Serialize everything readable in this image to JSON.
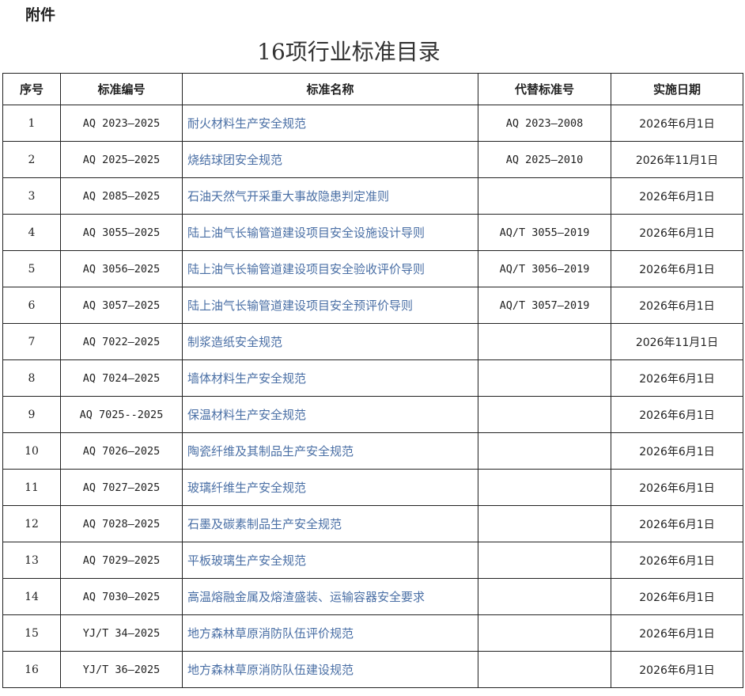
{
  "attachment_label": "附件",
  "title": "16项行业标准目录",
  "link_color": "#4a6fa5",
  "table": {
    "headers": [
      "序号",
      "标准编号",
      "标准名称",
      "代替标准号",
      "实施日期"
    ],
    "rows": [
      [
        "1",
        "AQ 2023—2025",
        "耐火材料生产安全规范",
        "AQ 2023—2008",
        "2026年6月1日"
      ],
      [
        "2",
        "AQ 2025—2025",
        "烧结球团安全规范",
        "AQ 2025—2010",
        "2026年11月1日"
      ],
      [
        "3",
        "AQ 2085—2025",
        "石油天然气开采重大事故隐患判定准则",
        "",
        "2026年6月1日"
      ],
      [
        "4",
        "AQ 3055—2025",
        "陆上油气长输管道建设项目安全设施设计导则",
        "AQ/T 3055—2019",
        "2026年6月1日"
      ],
      [
        "5",
        "AQ 3056—2025",
        "陆上油气长输管道建设项目安全验收评价导则",
        "AQ/T 3056—2019",
        "2026年6月1日"
      ],
      [
        "6",
        "AQ 3057—2025",
        "陆上油气长输管道建设项目安全预评价导则",
        "AQ/T 3057—2019",
        "2026年6月1日"
      ],
      [
        "7",
        "AQ 7022—2025",
        "制浆造纸安全规范",
        "",
        "2026年11月1日"
      ],
      [
        "8",
        "AQ 7024—2025",
        "墙体材料生产安全规范",
        "",
        "2026年6月1日"
      ],
      [
        "9",
        "AQ 7025--2025",
        "保温材料生产安全规范",
        "",
        "2026年6月1日"
      ],
      [
        "10",
        "AQ 7026—2025",
        "陶瓷纤维及其制品生产安全规范",
        "",
        "2026年6月1日"
      ],
      [
        "11",
        "AQ 7027—2025",
        "玻璃纤维生产安全规范",
        "",
        "2026年6月1日"
      ],
      [
        "12",
        "AQ 7028—2025",
        "石墨及碳素制品生产安全规范",
        "",
        "2026年6月1日"
      ],
      [
        "13",
        "AQ 7029—2025",
        "平板玻璃生产安全规范",
        "",
        "2026年6月1日"
      ],
      [
        "14",
        "AQ 7030—2025",
        "高温熔融金属及熔渣盛装、运输容器安全要求",
        "",
        "2026年6月1日"
      ],
      [
        "15",
        "YJ/T 34—2025",
        "地方森林草原消防队伍评价规范",
        "",
        "2026年6月1日"
      ],
      [
        "16",
        "YJ/T 36—2025",
        "地方森林草原消防队伍建设规范",
        "",
        "2026年6月1日"
      ]
    ]
  }
}
